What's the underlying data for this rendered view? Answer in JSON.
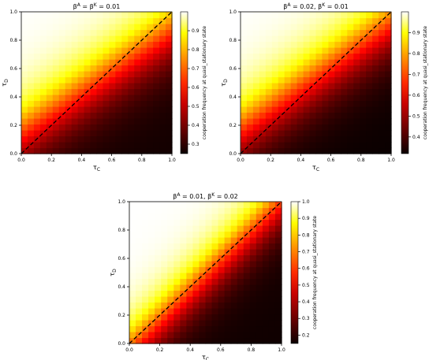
{
  "chart_data": [
    {
      "type": "heatmap",
      "title": "β^A = β^K = 0.01",
      "title_parts": {
        "lhs": "β",
        "sup1": "A",
        "mid": " = β",
        "sup2": "K",
        "rhs": " = 0.01"
      },
      "xlabel": "τ_C",
      "ylabel": "τ_D",
      "xlim": [
        0,
        1
      ],
      "ylim": [
        0,
        1
      ],
      "xticks": [
        "0.0",
        "0.2",
        "0.4",
        "0.6",
        "0.8",
        "1.0"
      ],
      "yticks": [
        "0.0",
        "0.2",
        "0.4",
        "0.6",
        "0.8",
        "1.0"
      ],
      "colorbar_label": "cooperation frequency at quasi_stationary state",
      "colorbar_ticks": [
        "0.3",
        "0.4",
        "0.5",
        "0.6",
        "0.7",
        "0.8",
        "0.9"
      ],
      "color_range": [
        0.25,
        1.0
      ],
      "diagonal": "dashed black line from (0,0) to (1,1)",
      "colormap": "hot",
      "grid": false
    },
    {
      "type": "heatmap",
      "title": "β^A = 0.02, β^K = 0.01",
      "title_parts": {
        "lhs": "β",
        "sup1": "A",
        "mid": " = 0.02, β",
        "sup2": "K",
        "rhs": " = 0.01"
      },
      "xlabel": "τ_C",
      "ylabel": "τ_D",
      "xlim": [
        0,
        1
      ],
      "ylim": [
        0,
        1
      ],
      "xticks": [
        "0.0",
        "0.2",
        "0.4",
        "0.6",
        "0.8",
        "1.0"
      ],
      "yticks": [
        "0.0",
        "0.2",
        "0.4",
        "0.6",
        "0.8",
        "1.0"
      ],
      "colorbar_label": "cooperation frequency at quasi_stationary state",
      "colorbar_ticks": [
        "0.4",
        "0.5",
        "0.6",
        "0.7",
        "0.8",
        "0.9"
      ],
      "color_range": [
        0.32,
        1.0
      ],
      "diagonal": "dashed black line from (0,0) to (1,1)",
      "colormap": "hot",
      "grid": false
    },
    {
      "type": "heatmap",
      "title": "β^A = 0.01, β^K = 0.02",
      "title_parts": {
        "lhs": "β",
        "sup1": "A",
        "mid": " = 0.01, β",
        "sup2": "K",
        "rhs": " = 0.02"
      },
      "xlabel": "τ_C",
      "ylabel": "τ_D",
      "xlim": [
        0,
        1
      ],
      "ylim": [
        0,
        1
      ],
      "xticks": [
        "0.0",
        "0.2",
        "0.4",
        "0.6",
        "0.8",
        "1.0"
      ],
      "yticks": [
        "0.0",
        "0.2",
        "0.4",
        "0.6",
        "0.8",
        "1.0"
      ],
      "colorbar_label": "cooperation frequency at quasi_stationary state",
      "colorbar_ticks": [
        "0.2",
        "0.3",
        "0.4",
        "0.5",
        "0.6",
        "0.7",
        "0.8",
        "0.9",
        "1.0"
      ],
      "color_range": [
        0.15,
        1.0
      ],
      "diagonal": "dashed black line from (0,0) to (1,1)",
      "colormap": "hot",
      "grid": false
    }
  ]
}
